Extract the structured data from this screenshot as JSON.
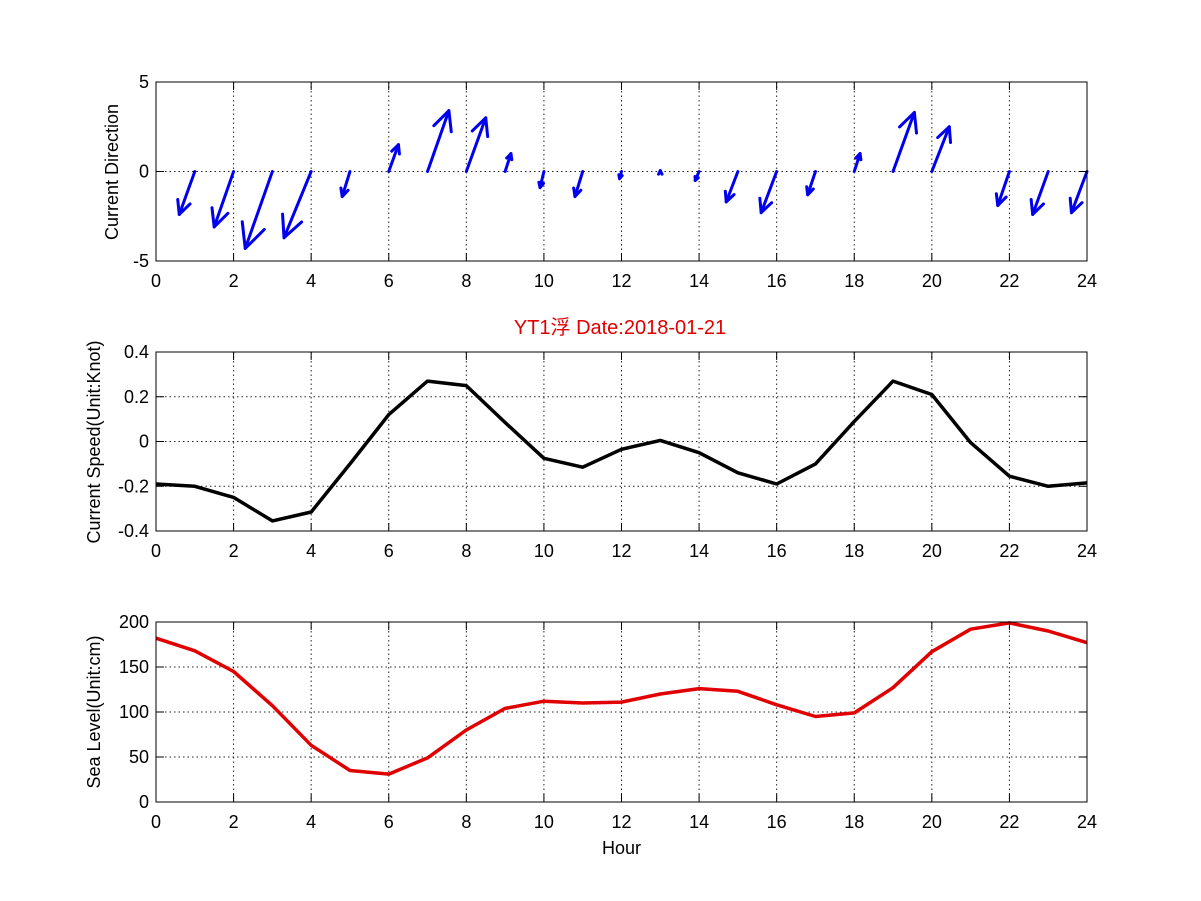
{
  "title": "YT1浮    Date:2018-01-21",
  "chart_data": [
    {
      "type": "quiver",
      "ylabel": "Current Direction",
      "xlim": [
        0,
        24
      ],
      "ylim": [
        -5,
        5
      ],
      "xticks": [
        0,
        2,
        4,
        6,
        8,
        10,
        12,
        14,
        16,
        18,
        20,
        22,
        24
      ],
      "yticks": [
        -5,
        0,
        5
      ],
      "grid": true,
      "color": "#0000ee",
      "vectors": [
        {
          "x": 1,
          "u": -0.4,
          "dy": -2.4
        },
        {
          "x": 2,
          "u": -0.5,
          "dy": -3.1
        },
        {
          "x": 3,
          "u": -0.7,
          "dy": -4.3
        },
        {
          "x": 4,
          "u": -0.7,
          "dy": -3.7
        },
        {
          "x": 5,
          "u": -0.2,
          "dy": -1.4
        },
        {
          "x": 6,
          "u": 0.25,
          "dy": 1.5
        },
        {
          "x": 7,
          "u": 0.55,
          "dy": 3.4
        },
        {
          "x": 8,
          "u": 0.5,
          "dy": 3.0
        },
        {
          "x": 9,
          "u": 0.15,
          "dy": 1.0
        },
        {
          "x": 10,
          "u": -0.1,
          "dy": -0.9
        },
        {
          "x": 11,
          "u": -0.2,
          "dy": -1.4
        },
        {
          "x": 12,
          "u": -0.05,
          "dy": -0.4
        },
        {
          "x": 13,
          "u": 0.0,
          "dy": 0.05
        },
        {
          "x": 14,
          "u": -0.1,
          "dy": -0.5
        },
        {
          "x": 15,
          "u": -0.3,
          "dy": -1.7
        },
        {
          "x": 16,
          "u": -0.4,
          "dy": -2.3
        },
        {
          "x": 17,
          "u": -0.2,
          "dy": -1.3
        },
        {
          "x": 18,
          "u": 0.15,
          "dy": 1.0
        },
        {
          "x": 19,
          "u": 0.55,
          "dy": 3.3
        },
        {
          "x": 20,
          "u": 0.45,
          "dy": 2.5
        },
        {
          "x": 22,
          "u": -0.3,
          "dy": -1.9
        },
        {
          "x": 23,
          "u": -0.4,
          "dy": -2.4
        },
        {
          "x": 24,
          "u": -0.4,
          "dy": -2.3
        }
      ]
    },
    {
      "type": "line",
      "ylabel": "Current Speed(Unit:Knot)",
      "xlim": [
        0,
        24
      ],
      "ylim": [
        -0.4,
        0.4
      ],
      "xticks": [
        0,
        2,
        4,
        6,
        8,
        10,
        12,
        14,
        16,
        18,
        20,
        22,
        24
      ],
      "yticks": [
        -0.4,
        -0.2,
        0,
        0.2,
        0.4
      ],
      "grid": true,
      "color": "#000000",
      "x": [
        0,
        1,
        2,
        3,
        4,
        5,
        6,
        7,
        8,
        9,
        10,
        11,
        12,
        13,
        14,
        15,
        16,
        17,
        18,
        19,
        20,
        21,
        22,
        23,
        24
      ],
      "y": [
        -0.19,
        -0.2,
        -0.25,
        -0.355,
        -0.315,
        -0.1,
        0.12,
        0.27,
        0.25,
        0.085,
        -0.075,
        -0.115,
        -0.035,
        0.005,
        -0.05,
        -0.14,
        -0.19,
        -0.1,
        0.09,
        0.27,
        0.21,
        -0.005,
        -0.155,
        -0.2,
        -0.185
      ]
    },
    {
      "type": "line",
      "ylabel": "Sea Level(Unit:cm)",
      "xlabel": "Hour",
      "xlim": [
        0,
        24
      ],
      "ylim": [
        0,
        200
      ],
      "xticks": [
        0,
        2,
        4,
        6,
        8,
        10,
        12,
        14,
        16,
        18,
        20,
        22,
        24
      ],
      "yticks": [
        0,
        50,
        100,
        150,
        200
      ],
      "grid": true,
      "color": "#e00000",
      "x": [
        0,
        1,
        2,
        3,
        4,
        5,
        6,
        7,
        8,
        9,
        10,
        11,
        12,
        13,
        14,
        15,
        16,
        17,
        18,
        19,
        20,
        21,
        22,
        23,
        24
      ],
      "y": [
        182,
        168,
        145,
        107,
        63,
        35,
        31,
        49,
        80,
        104,
        112,
        110,
        111,
        120,
        126,
        123,
        108,
        95,
        99,
        127,
        167,
        192,
        199,
        190,
        177
      ]
    }
  ]
}
